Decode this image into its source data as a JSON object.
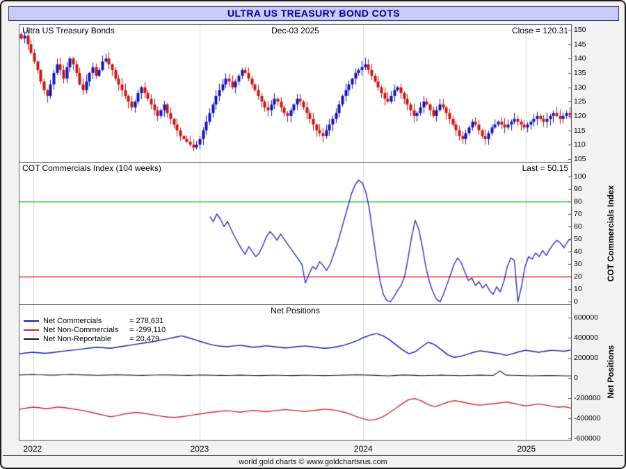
{
  "header": {
    "title": "ULTRA US TREASURY BOND COTS"
  },
  "price_panel": {
    "label": "Ultra US Treasury Bonds",
    "date": "Dec-03  2025",
    "close_label": "Close = 120.31"
  },
  "cot_panel": {
    "label": "COT Commercials Index (104 weeks)",
    "last_label": "Last = 50.15",
    "axis_label": "COT Commercials Index"
  },
  "net_panel": {
    "title": "Net Positions",
    "axis_label": "Net Positions",
    "legend": [
      {
        "label": "Net Commercials",
        "value": "= 278,631",
        "color": "#1414b4"
      },
      {
        "label": "Net Non-Commercials",
        "value": "= -299,110",
        "color": "#d42020"
      },
      {
        "label": "Net Non-Reportable",
        "value": "= 20,479",
        "color": "#141414"
      }
    ]
  },
  "footer": {
    "text": "world gold charts © www.goldchartsrus.com"
  },
  "chart_data": [
    {
      "type": "candlestick",
      "title": "Ultra US Treasury Bonds",
      "last_close": 120.31,
      "x_years": [
        "2022",
        "2023",
        "2024",
        "2025"
      ],
      "year_fracs": [
        0.025,
        0.327,
        0.623,
        0.918
      ],
      "ylim": [
        104,
        151.7
      ],
      "yticks": [
        150,
        145,
        140,
        135,
        130,
        125,
        120,
        115,
        110,
        105
      ],
      "up_color": "#1414b4",
      "down_color": "#c81616",
      "weekly_closes": [
        147,
        148,
        145,
        142,
        139,
        136,
        132,
        129,
        127,
        131,
        135,
        138,
        136,
        133,
        137,
        140,
        138,
        135,
        131,
        129,
        132,
        135,
        137,
        134,
        136,
        139,
        140,
        138,
        136,
        133,
        131,
        129,
        127,
        125,
        123,
        125,
        128,
        130,
        128,
        126,
        124,
        122,
        120,
        122,
        124,
        121,
        119,
        117,
        115,
        113,
        112,
        111,
        110,
        109,
        110,
        112,
        115,
        118,
        121,
        124,
        127,
        129,
        131,
        133,
        132,
        130,
        132,
        134,
        136,
        135,
        133,
        131,
        129,
        127,
        125,
        123,
        122,
        124,
        126,
        125,
        123,
        121,
        120,
        122,
        124,
        126,
        125,
        123,
        121,
        119,
        117,
        115,
        114,
        113,
        115,
        117,
        119,
        121,
        124,
        127,
        129,
        131,
        133,
        135,
        136,
        137,
        138,
        136,
        134,
        132,
        130,
        128,
        126,
        125,
        127,
        129,
        130,
        128,
        126,
        124,
        122,
        120,
        121,
        123,
        125,
        124,
        122,
        120,
        122,
        124,
        123,
        121,
        119,
        117,
        115,
        113,
        112,
        114,
        116,
        118,
        117,
        115,
        113,
        112,
        114,
        116,
        117,
        118,
        117,
        116,
        117,
        118,
        119,
        118,
        117,
        116,
        117,
        118,
        119,
        120,
        119,
        118,
        119,
        120,
        121,
        120,
        119,
        120,
        121,
        120.31
      ]
    },
    {
      "type": "line",
      "title": "COT Commercials Index (104 weeks)",
      "last": 50.15,
      "ylim": [
        -2,
        111
      ],
      "yticks": [
        100,
        90,
        80,
        70,
        60,
        50,
        40,
        30,
        20,
        10,
        0
      ],
      "upper_band": 80,
      "upper_color": "#2eb82e",
      "lower_band": 20,
      "lower_color": "#e03030",
      "line_color": "#2a2ac8",
      "start_frac": 0.345,
      "values": [
        68,
        64,
        70,
        66,
        60,
        64,
        58,
        52,
        47,
        42,
        38,
        44,
        40,
        36,
        39,
        45,
        52,
        56,
        53,
        49,
        54,
        50,
        46,
        42,
        38,
        34,
        30,
        15,
        22,
        28,
        26,
        32,
        29,
        25,
        30,
        38,
        46,
        56,
        66,
        76,
        86,
        93,
        97,
        95,
        88,
        75,
        55,
        35,
        18,
        6,
        1,
        0,
        4,
        9,
        13,
        20,
        35,
        52,
        65,
        58,
        44,
        28,
        16,
        8,
        2,
        0,
        6,
        14,
        22,
        30,
        35,
        31,
        24,
        17,
        19,
        13,
        16,
        11,
        14,
        9,
        6,
        12,
        8,
        16,
        28,
        35,
        33,
        0,
        12,
        28,
        36,
        34,
        39,
        36,
        41,
        37,
        42,
        46,
        49,
        47,
        43,
        48,
        50.15
      ]
    },
    {
      "type": "line-multi",
      "title": "Net Positions",
      "ylim": [
        -614000,
        724000
      ],
      "yticks": [
        600000,
        400000,
        200000,
        0,
        -200000,
        -400000,
        -600000
      ],
      "series": [
        {
          "name": "Net Commercials",
          "color": "#1414b4",
          "last": 278631,
          "values": [
            240000,
            248000,
            255000,
            250000,
            245000,
            252000,
            260000,
            268000,
            275000,
            282000,
            290000,
            298000,
            305000,
            300000,
            295000,
            305000,
            315000,
            325000,
            335000,
            345000,
            355000,
            365000,
            378000,
            390000,
            405000,
            418000,
            400000,
            380000,
            360000,
            340000,
            325000,
            315000,
            310000,
            318000,
            325000,
            315000,
            305000,
            310000,
            320000,
            312000,
            305000,
            298000,
            305000,
            312000,
            318000,
            310000,
            302000,
            295000,
            300000,
            310000,
            325000,
            345000,
            370000,
            400000,
            425000,
            440000,
            420000,
            380000,
            330000,
            280000,
            240000,
            260000,
            310000,
            355000,
            330000,
            280000,
            230000,
            205000,
            215000,
            235000,
            255000,
            270000,
            260000,
            250000,
            240000,
            225000,
            240000,
            260000,
            275000,
            265000,
            255000,
            265000,
            275000,
            270000,
            265000,
            278631
          ]
        },
        {
          "name": "Net Non-Commercials",
          "color": "#d42020",
          "last": -299110,
          "values": [
            -310000,
            -300000,
            -290000,
            -295000,
            -305000,
            -298000,
            -288000,
            -295000,
            -305000,
            -315000,
            -325000,
            -340000,
            -355000,
            -370000,
            -385000,
            -375000,
            -360000,
            -350000,
            -342000,
            -350000,
            -360000,
            -370000,
            -380000,
            -388000,
            -392000,
            -385000,
            -375000,
            -365000,
            -355000,
            -345000,
            -338000,
            -330000,
            -325000,
            -332000,
            -340000,
            -330000,
            -322000,
            -328000,
            -335000,
            -327000,
            -320000,
            -313000,
            -320000,
            -327000,
            -333000,
            -325000,
            -317000,
            -310000,
            -315000,
            -325000,
            -340000,
            -360000,
            -385000,
            -405000,
            -420000,
            -410000,
            -385000,
            -345000,
            -300000,
            -255000,
            -215000,
            -205000,
            -230000,
            -265000,
            -285000,
            -265000,
            -240000,
            -225000,
            -235000,
            -250000,
            -262000,
            -270000,
            -262000,
            -255000,
            -248000,
            -238000,
            -250000,
            -265000,
            -278000,
            -268000,
            -258000,
            -268000,
            -280000,
            -290000,
            -285000,
            -299110
          ]
        },
        {
          "name": "Net Non-Reportable",
          "color": "#141414",
          "last": 20479,
          "values": [
            30000,
            32000,
            35000,
            33000,
            30000,
            28000,
            30000,
            33000,
            35000,
            32000,
            30000,
            28000,
            26000,
            28000,
            30000,
            32000,
            30000,
            28000,
            26000,
            25000,
            27000,
            29000,
            31000,
            30000,
            28000,
            26000,
            25000,
            27000,
            29000,
            28000,
            26000,
            25000,
            24000,
            26000,
            28000,
            26000,
            24000,
            23000,
            25000,
            27000,
            26000,
            24000,
            23000,
            25000,
            27000,
            26000,
            24000,
            23000,
            24000,
            26000,
            28000,
            30000,
            32000,
            30000,
            28000,
            25000,
            22000,
            20000,
            25000,
            30000,
            28000,
            25000,
            22000,
            24000,
            26000,
            28000,
            26000,
            24000,
            22000,
            24000,
            26000,
            28000,
            26000,
            24000,
            70000,
            28000,
            26000,
            24000,
            22000,
            20000,
            22000,
            24000,
            23000,
            22000,
            21000,
            20479
          ]
        }
      ]
    }
  ]
}
